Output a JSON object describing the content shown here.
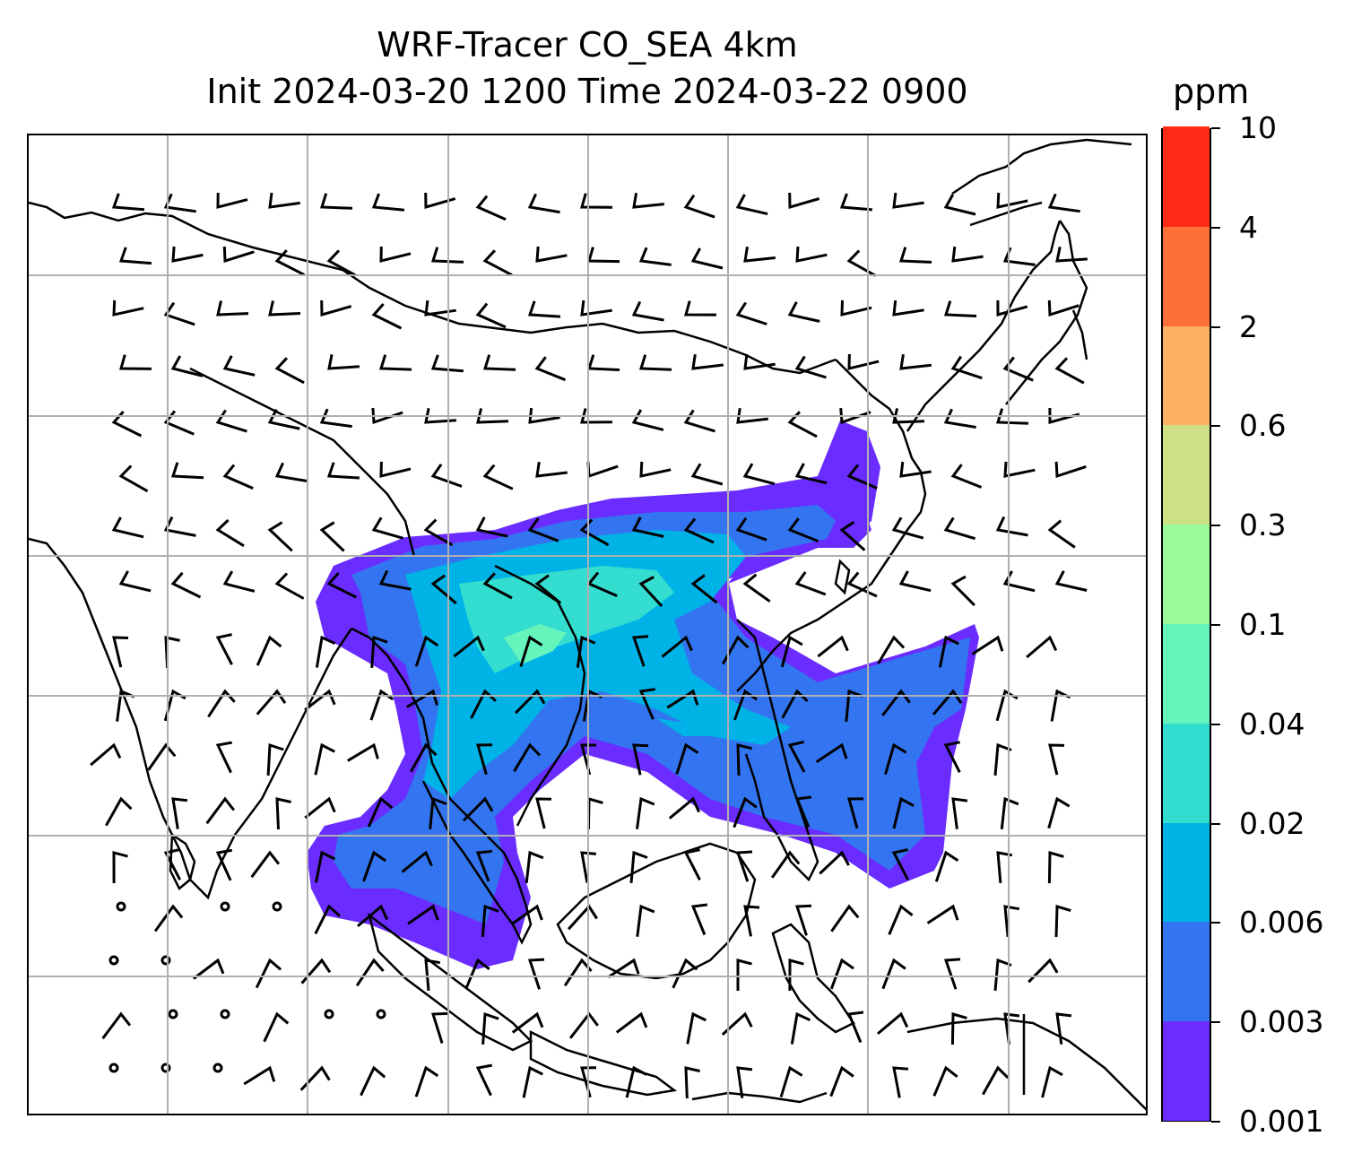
{
  "title": {
    "line1": "WRF-Tracer CO_SEA 4km",
    "line2": "Init 2024-03-20 1200 Time 2024-03-22 0900"
  },
  "colorbar": {
    "unit": "ppm",
    "levels": [
      "0.001",
      "0.003",
      "0.006",
      "0.02",
      "0.04",
      "0.1",
      "0.3",
      "0.6",
      "2",
      "4",
      "10"
    ],
    "colors": [
      "#6a2cff",
      "#3375f0",
      "#00b3e6",
      "#33ddd0",
      "#66f4bd",
      "#99fa99",
      "#cde085",
      "#fdb062",
      "#ff7038",
      "#ff2b16"
    ]
  },
  "map": {
    "gridlines": true,
    "gridline_color": "#b0b0b0",
    "coastline_color": "#000000",
    "overlay": "wind barbs"
  }
}
